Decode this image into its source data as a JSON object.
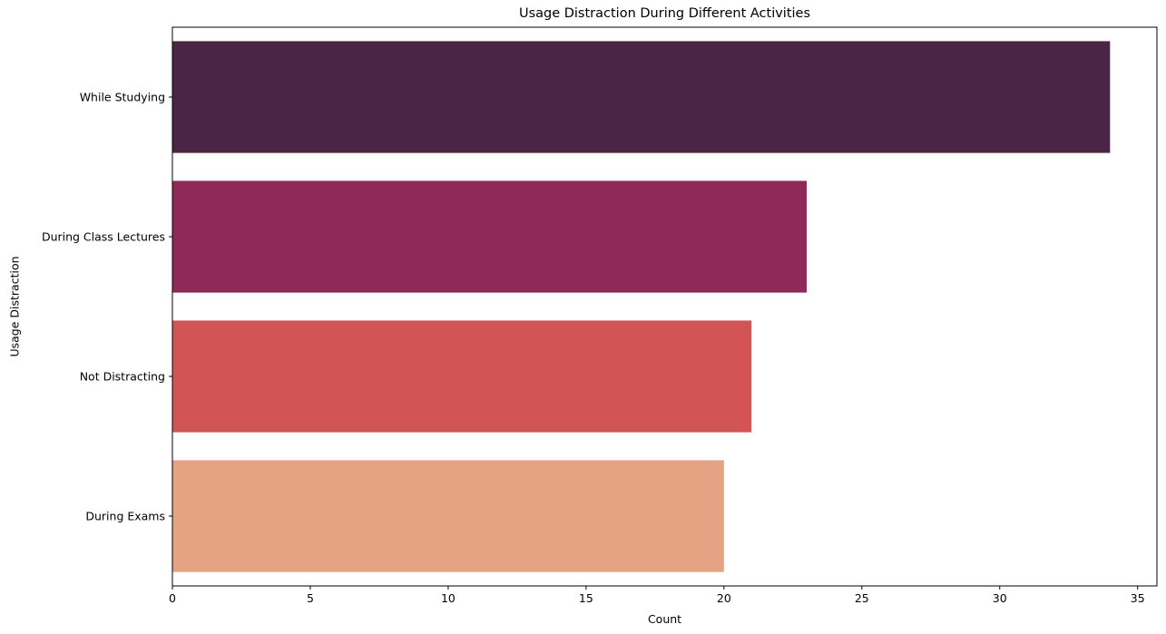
{
  "chart_data": {
    "type": "bar",
    "orientation": "horizontal",
    "title": "Usage Distraction During Different Activities",
    "xlabel": "Count",
    "ylabel": "Usage Distraction",
    "categories": [
      "While Studying",
      "During Class Lectures",
      "Not Distracting",
      "During Exams"
    ],
    "values": [
      34,
      23,
      21,
      20
    ],
    "colors": [
      "#4a2545",
      "#8f2a58",
      "#d35454",
      "#e5a383"
    ],
    "xlim": [
      0,
      35.7
    ],
    "xticks": [
      0,
      5,
      10,
      15,
      20,
      25,
      30,
      35
    ],
    "grid": false,
    "legend": "none"
  }
}
